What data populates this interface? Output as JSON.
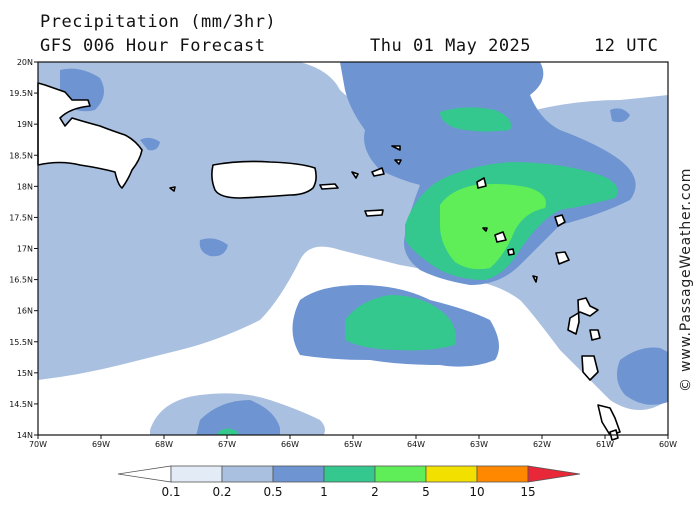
{
  "header": {
    "title": "Precipitation (mm/3hr)",
    "model": "GFS 006 Hour Forecast",
    "date": "Thu 01 May 2025",
    "time": "12 UTC"
  },
  "watermark": "© www.PassageWeather.com",
  "axes": {
    "lon_labels": [
      "70W",
      "69W",
      "68W",
      "67W",
      "66W",
      "65W",
      "64W",
      "63W",
      "62W",
      "61W",
      "60W"
    ],
    "lat_labels": [
      "20N",
      "19.5N",
      "19N",
      "18.5N",
      "18N",
      "17.5N",
      "17N",
      "16.5N",
      "16N",
      "15.5N",
      "15N",
      "14.5N",
      "14N"
    ]
  },
  "legend": {
    "levels": [
      "0.1",
      "0.2",
      "0.5",
      "1",
      "2",
      "5",
      "10",
      "15"
    ],
    "colors": [
      "#ffffff",
      "#e3ebf7",
      "#aac0e0",
      "#6e94d2",
      "#34c88e",
      "#60ee58",
      "#f2e000",
      "#ff8800",
      "#e82838"
    ]
  }
}
